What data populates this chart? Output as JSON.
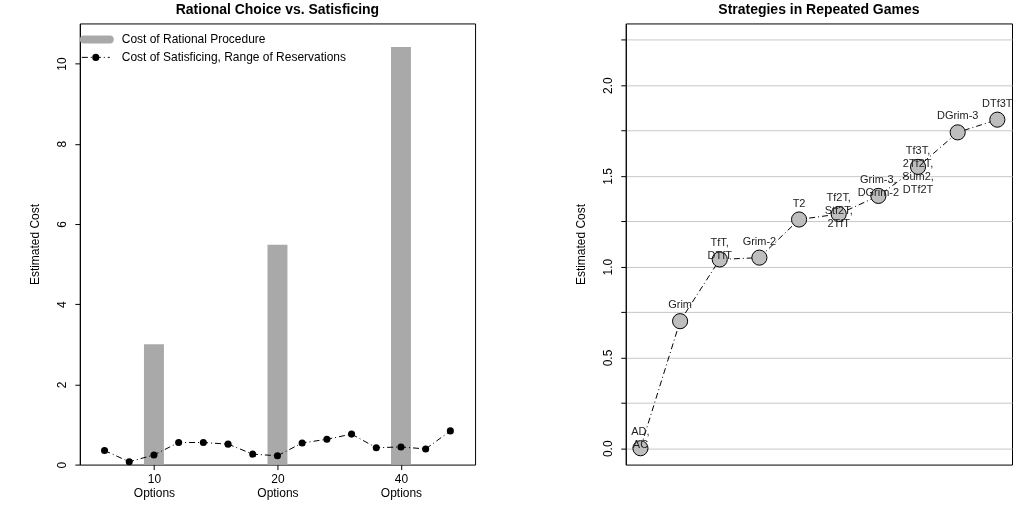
{
  "chart_data": [
    {
      "type": "bar",
      "title": "Rational Choice vs. Satisficing",
      "ylabel": "Estimated Cost",
      "categories": [
        null,
        null,
        "10\nOptions",
        null,
        null,
        null,
        null,
        "20\nOptions",
        null,
        null,
        null,
        null,
        "40\nOptions",
        null,
        null
      ],
      "series": [
        {
          "name": "Cost of Rational Procedure",
          "type": "bar",
          "color": "#a9a9a9",
          "values": [
            null,
            null,
            3.0,
            null,
            null,
            null,
            null,
            5.48,
            null,
            null,
            null,
            null,
            10.41,
            null,
            null
          ]
        },
        {
          "name": "Cost of Satisficing, Range of Reservations",
          "type": "line",
          "color": "#000000",
          "values": [
            0.35,
            0.07,
            0.24,
            0.55,
            0.55,
            0.51,
            0.26,
            0.22,
            0.54,
            0.63,
            0.76,
            0.42,
            0.44,
            0.39,
            0.84
          ]
        }
      ],
      "ylim": [
        0,
        11
      ],
      "yticks": [
        0,
        2,
        4,
        6,
        8,
        10
      ],
      "legend": "top left",
      "marker": "circle",
      "line_style": "dashed"
    },
    {
      "type": "line",
      "title": "Strategies in Repeated Games",
      "ylabel": "Estimated Cost",
      "categories": [
        null,
        null,
        null,
        null,
        null,
        null,
        null,
        null,
        null,
        null
      ],
      "series": [
        {
          "color": "#bebebe",
          "values": [
            0,
            0.7,
            1.04,
            1.05,
            1.26,
            1.29,
            1.39,
            1.55,
            1.74,
            1.81
          ],
          "value_labels": [
            "AD,\nAC",
            "Grim",
            "TfT,\nDTfT",
            "Grim-2",
            "T2",
            "Tf2T,\nStf2T,\n2TfT",
            "Grim-3,\nDGrim-2",
            "Tf3T,\n2Tf2T,\nSum2,\nDTf2T",
            "DGrim-3",
            "DTf3T"
          ]
        }
      ],
      "ylim": [
        -0.09,
        2.34
      ],
      "yticks": [
        {
          "value": 0,
          "label": "0.0"
        },
        {
          "value": 0.25,
          "label": null
        },
        0.5,
        {
          "value": 0.75,
          "label": null
        },
        {
          "value": 1,
          "label": "1.0"
        },
        {
          "value": 1.25,
          "label": null
        },
        1.5,
        {
          "value": 1.75,
          "label": null
        },
        {
          "value": 2,
          "label": "2.0"
        },
        {
          "value": 2.25,
          "label": null
        }
      ],
      "grid": "y",
      "tick_labels": "y",
      "marker": "circle",
      "line_style": "dashed"
    }
  ]
}
